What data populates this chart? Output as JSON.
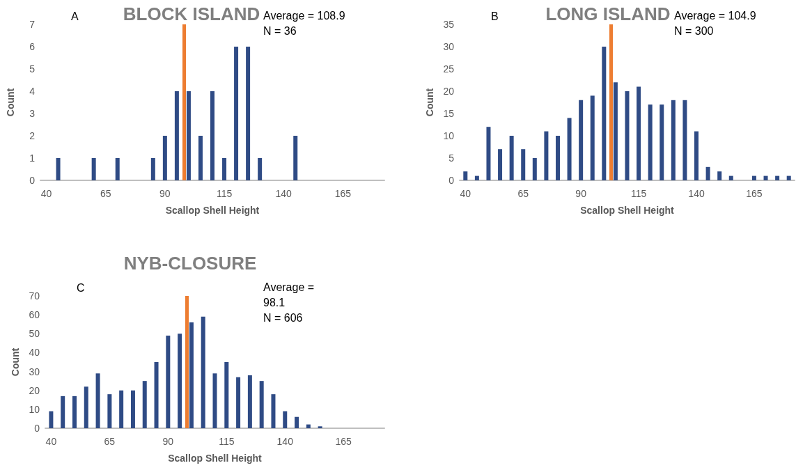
{
  "chart_data": [
    {
      "type": "bar",
      "title": "BLOCK ISLAND",
      "xlabel": "Scallop Shell Height",
      "ylabel": "Count",
      "annotations": [
        "A",
        "Average = 108.9",
        "N = 36"
      ],
      "x": [
        40,
        45,
        50,
        55,
        60,
        65,
        70,
        75,
        80,
        85,
        90,
        95,
        100,
        105,
        110,
        115,
        120,
        125,
        130,
        135,
        140,
        145,
        150,
        155,
        160,
        165,
        170,
        175,
        180
      ],
      "series": [
        {
          "color": "#2f4b85",
          "values": [
            0,
            1,
            0,
            0,
            1,
            0,
            1,
            0,
            0,
            1,
            2,
            4,
            4,
            2,
            4,
            1,
            6,
            6,
            1,
            0,
            0,
            2,
            0,
            0,
            0,
            0,
            0,
            0,
            0
          ]
        }
      ],
      "xlim": [
        37.5,
        182.5
      ],
      "xticks": [
        40,
        65,
        90,
        115,
        140,
        165
      ],
      "ylim": [
        0,
        7
      ],
      "yticks": [
        0,
        1,
        2,
        3,
        4,
        5,
        6,
        7
      ],
      "grid": false,
      "ref_lines": [
        {
          "axis": "x",
          "value": 98,
          "color": "#ed7d31"
        }
      ]
    },
    {
      "type": "bar",
      "title": "LONG ISLAND",
      "xlabel": "Scallop Shell Height",
      "ylabel": "Count",
      "annotations": [
        "B",
        "Average = 104.9",
        "N = 300"
      ],
      "x": [
        40,
        45,
        50,
        55,
        60,
        65,
        70,
        75,
        80,
        85,
        90,
        95,
        100,
        105,
        110,
        115,
        120,
        125,
        130,
        135,
        140,
        145,
        150,
        155,
        160,
        165,
        170,
        175,
        180
      ],
      "series": [
        {
          "color": "#2f4b85",
          "values": [
            2,
            1,
            12,
            7,
            10,
            7,
            5,
            11,
            10,
            14,
            18,
            19,
            30,
            22,
            20,
            21,
            17,
            17,
            18,
            18,
            11,
            3,
            2,
            1,
            0,
            1,
            1,
            1,
            1
          ]
        }
      ],
      "xlim": [
        37.5,
        182.5
      ],
      "xticks": [
        40,
        65,
        90,
        115,
        140,
        165
      ],
      "ylim": [
        0,
        35
      ],
      "yticks": [
        0,
        5,
        10,
        15,
        20,
        25,
        30,
        35
      ],
      "grid": false,
      "ref_lines": [
        {
          "axis": "x",
          "value": 103,
          "color": "#ed7d31"
        }
      ]
    },
    {
      "type": "bar",
      "title": "NYB-CLOSURE",
      "xlabel": "Scallop Shell Height",
      "ylabel": "Count",
      "annotations": [
        "C",
        "Average = 98.1",
        "N = 606"
      ],
      "x": [
        40,
        45,
        50,
        55,
        60,
        65,
        70,
        75,
        80,
        85,
        90,
        95,
        100,
        105,
        110,
        115,
        120,
        125,
        130,
        135,
        140,
        145,
        150,
        155,
        160,
        165,
        170,
        175,
        180
      ],
      "series": [
        {
          "color": "#2f4b85",
          "values": [
            9,
            17,
            17,
            22,
            29,
            18,
            20,
            20,
            25,
            35,
            49,
            50,
            56,
            59,
            29,
            35,
            27,
            28,
            25,
            18,
            9,
            6,
            2,
            1,
            0,
            0,
            0,
            0,
            0
          ]
        }
      ],
      "xlim": [
        37.5,
        182.5
      ],
      "xticks": [
        40,
        65,
        90,
        115,
        140,
        165
      ],
      "ylim": [
        0,
        70
      ],
      "yticks": [
        0,
        10,
        20,
        30,
        40,
        50,
        60,
        70
      ],
      "grid": false,
      "ref_lines": [
        {
          "axis": "x",
          "value": 98,
          "color": "#ed7d31"
        }
      ]
    }
  ]
}
